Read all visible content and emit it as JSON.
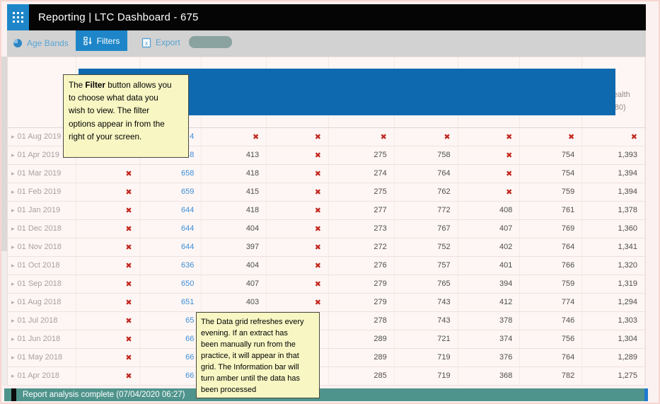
{
  "window": {
    "title": "Reporting | LTC Dashboard - 675"
  },
  "toolbar": {
    "age_bands": "Age Bands",
    "filters": "Filters",
    "export": "Export"
  },
  "grid": {
    "header_fragment": "&\nHealth\n(680)",
    "rows": [
      {
        "date": "01 Aug 2019",
        "cells": [
          "",
          "4",
          "X",
          "X",
          "X",
          "X",
          "X",
          "X",
          "X"
        ]
      },
      {
        "date": "01 Apr 2019",
        "cells": [
          "",
          "48",
          "413",
          "X",
          "275",
          "758",
          "X",
          "754",
          "1,393"
        ]
      },
      {
        "date": "01 Mar 2019",
        "cells": [
          "X",
          "658",
          "418",
          "X",
          "274",
          "764",
          "X",
          "754",
          "1,394"
        ]
      },
      {
        "date": "01 Feb 2019",
        "cells": [
          "X",
          "659",
          "415",
          "X",
          "275",
          "762",
          "X",
          "759",
          "1,394"
        ]
      },
      {
        "date": "01 Jan 2019",
        "cells": [
          "X",
          "644",
          "418",
          "X",
          "277",
          "772",
          "408",
          "761",
          "1,378"
        ]
      },
      {
        "date": "01 Dec 2018",
        "cells": [
          "X",
          "644",
          "404",
          "X",
          "273",
          "767",
          "407",
          "769",
          "1,360"
        ]
      },
      {
        "date": "01 Nov 2018",
        "cells": [
          "X",
          "644",
          "397",
          "X",
          "272",
          "752",
          "402",
          "764",
          "1,341"
        ]
      },
      {
        "date": "01 Oct 2018",
        "cells": [
          "X",
          "636",
          "404",
          "X",
          "276",
          "757",
          "401",
          "766",
          "1,320"
        ]
      },
      {
        "date": "01 Sep 2018",
        "cells": [
          "X",
          "650",
          "407",
          "X",
          "279",
          "765",
          "394",
          "759",
          "1,319"
        ]
      },
      {
        "date": "01 Aug 2018",
        "cells": [
          "X",
          "651",
          "403",
          "X",
          "279",
          "743",
          "412",
          "774",
          "1,294"
        ]
      },
      {
        "date": "01 Jul 2018",
        "cells": [
          "X",
          "65",
          "",
          "",
          "278",
          "743",
          "378",
          "746",
          "1,303"
        ]
      },
      {
        "date": "01 Jun 2018",
        "cells": [
          "X",
          "66",
          "",
          "",
          "289",
          "721",
          "374",
          "756",
          "1,304"
        ]
      },
      {
        "date": "01 May 2018",
        "cells": [
          "X",
          "66",
          "",
          "",
          "289",
          "719",
          "376",
          "764",
          "1,289"
        ]
      },
      {
        "date": "01 Apr 2018",
        "cells": [
          "X",
          "66",
          "",
          "",
          "285",
          "719",
          "368",
          "782",
          "1,275"
        ]
      }
    ]
  },
  "tooltip_filter": {
    "pre": "The ",
    "bold": "Filter",
    "rest": " button allows you\nto choose what data you\nwish to view. The filter\noptions appear in from the\nright of your screen."
  },
  "tooltip_grid": {
    "text": "The Data grid refreshes every\nevening. If an extract has\nbeen manually run from the\npractice, it will appear in that\ngrid. The Information bar will\nturn amber until the data has\nbeen processed"
  },
  "status_bar": {
    "text": "Report analysis complete (07/04/2020 06:27)"
  },
  "colors": {
    "accent_blue": "#1e86c8",
    "link_blue": "#3e8ed8",
    "cross_red": "#c2271f",
    "status_teal": "#4f948c",
    "redaction_blue": "#0e69af",
    "pill_gray": "#8aa3a0"
  }
}
